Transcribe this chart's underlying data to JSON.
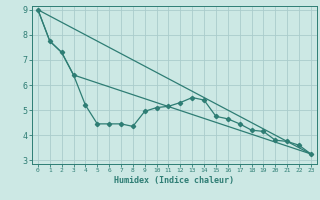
{
  "xlabel": "Humidex (Indice chaleur)",
  "background_color": "#cce8e4",
  "grid_color": "#aacccc",
  "line_color": "#2e7d74",
  "xlim": [
    -0.5,
    23.5
  ],
  "ylim": [
    2.85,
    9.15
  ],
  "yticks": [
    3,
    4,
    5,
    6,
    7,
    8,
    9
  ],
  "xticks": [
    0,
    1,
    2,
    3,
    4,
    5,
    6,
    7,
    8,
    9,
    10,
    11,
    12,
    13,
    14,
    15,
    16,
    17,
    18,
    19,
    20,
    21,
    22,
    23
  ],
  "line1_x": [
    0,
    1,
    2,
    3,
    4,
    5,
    6,
    7,
    8,
    9,
    10,
    11,
    12,
    13,
    14,
    15,
    16,
    17,
    18,
    19,
    20,
    21,
    22,
    23
  ],
  "line1_y": [
    9.0,
    7.75,
    7.3,
    6.4,
    5.2,
    4.45,
    4.45,
    4.45,
    4.35,
    4.95,
    5.1,
    5.15,
    5.3,
    5.5,
    5.4,
    4.75,
    4.65,
    4.45,
    4.2,
    4.15,
    3.8,
    3.75,
    3.6,
    3.25
  ],
  "line2_x": [
    0,
    1,
    2,
    3,
    23
  ],
  "line2_y": [
    9.0,
    7.75,
    7.3,
    6.4,
    3.25
  ],
  "line3_x": [
    0,
    23
  ],
  "line3_y": [
    9.0,
    3.25
  ],
  "marker": "D",
  "markersize": 2.2,
  "linewidth": 0.9
}
